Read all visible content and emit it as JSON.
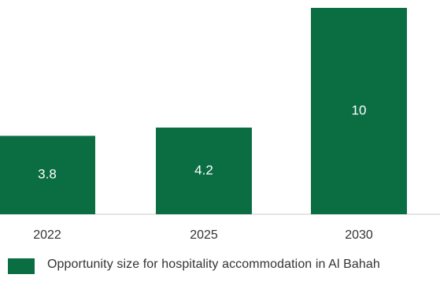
{
  "chart_data": {
    "type": "bar",
    "categories": [
      "2022",
      "2025",
      "2030"
    ],
    "series": [
      {
        "name": "Opportunity size for hospitality accommodation in Al Bahah",
        "values": [
          3.8,
          4.2,
          10
        ],
        "color": "#0b6e43"
      }
    ],
    "ylim": [
      0,
      10
    ],
    "grid": false,
    "legend_position": "bottom-left"
  }
}
